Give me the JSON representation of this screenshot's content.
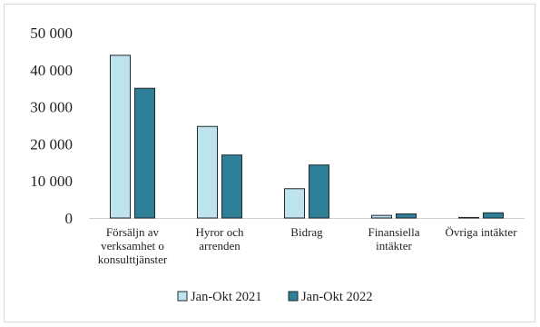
{
  "chart_data": {
    "type": "bar",
    "title": "",
    "xlabel": "",
    "ylabel": "",
    "categories": [
      [
        "Försäljn av",
        "verksamhet o",
        "konsulttjänster"
      ],
      [
        "Hyror och",
        "arrenden"
      ],
      [
        "Bidrag"
      ],
      [
        "Finansiella",
        "intäkter"
      ],
      [
        "Övriga intäkter"
      ]
    ],
    "series": [
      {
        "name": "Jan-Okt 2021",
        "color": "#bfe3ee",
        "values": [
          43900,
          24700,
          7900,
          700,
          150
        ]
      },
      {
        "name": "Jan-Okt 2022",
        "color": "#2f7f98",
        "values": [
          35000,
          17000,
          14300,
          1100,
          1400
        ]
      }
    ],
    "ylim": [
      0,
      50000
    ],
    "yticks": [
      0,
      10000,
      20000,
      30000,
      40000,
      50000
    ],
    "ytick_labels": [
      "0",
      "10 000",
      "20 000",
      "30 000",
      "40 000",
      "50 000"
    ],
    "grid": false,
    "legend_position": "bottom"
  }
}
